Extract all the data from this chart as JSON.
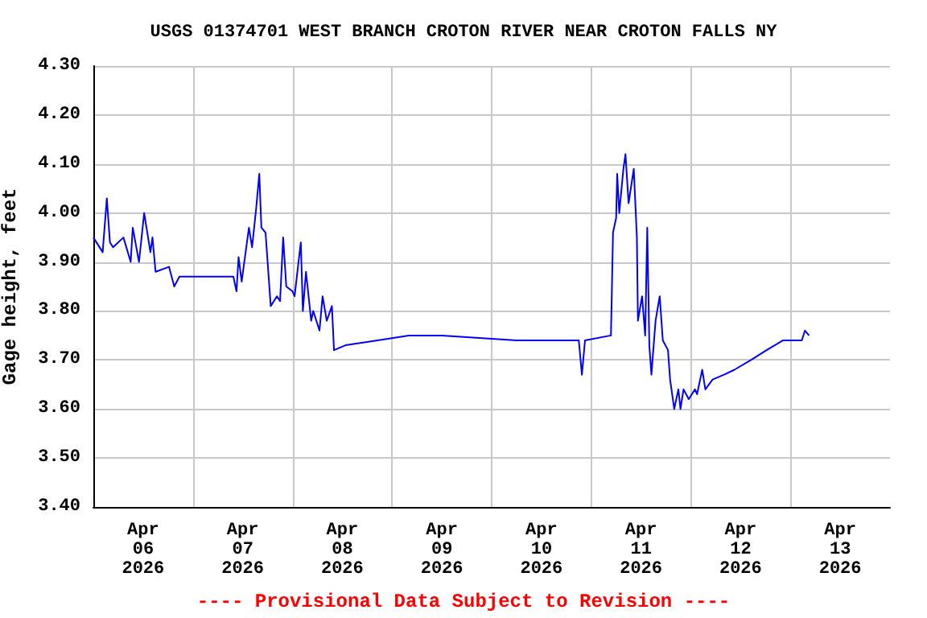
{
  "chart_data": {
    "type": "line",
    "title": "USGS 01374701 WEST BRANCH CROTON RIVER NEAR CROTON FALLS NY",
    "ylabel": "Gage height, feet",
    "annotations": [
      "---- Provisional Data Subject to Revision ----"
    ],
    "x": [
      "2026-04-06T00:00",
      "2026-04-06T02:15",
      "2026-04-06T03:15",
      "2026-04-06T04:00",
      "2026-04-06T04:45",
      "2026-04-06T07:15",
      "2026-04-06T09:00",
      "2026-04-06T09:30",
      "2026-04-06T11:00",
      "2026-04-06T12:15",
      "2026-04-06T13:45",
      "2026-04-06T14:15",
      "2026-04-06T15:00",
      "2026-04-06T18:15",
      "2026-04-06T19:30",
      "2026-04-06T20:45",
      "2026-04-07T09:45",
      "2026-04-07T10:30",
      "2026-04-07T11:00",
      "2026-04-07T11:45",
      "2026-04-07T13:30",
      "2026-04-07T14:15",
      "2026-04-07T15:15",
      "2026-04-07T16:00",
      "2026-04-07T16:30",
      "2026-04-07T17:30",
      "2026-04-07T18:00",
      "2026-04-07T18:45",
      "2026-04-07T20:15",
      "2026-04-07T21:00",
      "2026-04-07T21:45",
      "2026-04-07T22:30",
      "2026-04-08T00:00",
      "2026-04-08T00:30",
      "2026-04-08T02:00",
      "2026-04-08T02:30",
      "2026-04-08T03:15",
      "2026-04-08T04:30",
      "2026-04-08T05:00",
      "2026-04-08T06:30",
      "2026-04-08T07:15",
      "2026-04-08T08:15",
      "2026-04-08T09:30",
      "2026-04-08T10:00",
      "2026-04-08T12:45",
      "2026-04-08T20:30",
      "2026-04-09T04:00",
      "2026-04-09T12:00",
      "2026-04-10T06:00",
      "2026-04-10T21:00",
      "2026-04-10T21:45",
      "2026-04-10T22:30",
      "2026-04-11T04:45",
      "2026-04-11T05:15",
      "2026-04-11T06:00",
      "2026-04-11T06:15",
      "2026-04-11T06:45",
      "2026-04-11T07:45",
      "2026-04-11T08:15",
      "2026-04-11T09:00",
      "2026-04-11T10:15",
      "2026-04-11T11:00",
      "2026-04-11T11:15",
      "2026-04-11T12:15",
      "2026-04-11T13:00",
      "2026-04-11T13:30",
      "2026-04-11T14:00",
      "2026-04-11T14:30",
      "2026-04-11T15:30",
      "2026-04-11T16:30",
      "2026-04-11T17:15",
      "2026-04-11T18:30",
      "2026-04-11T19:00",
      "2026-04-11T20:00",
      "2026-04-11T21:00",
      "2026-04-11T21:30",
      "2026-04-11T22:15",
      "2026-04-11T23:30",
      "2026-04-12T01:00",
      "2026-04-12T01:30",
      "2026-04-12T02:45",
      "2026-04-12T03:30",
      "2026-04-12T05:15",
      "2026-04-12T08:00",
      "2026-04-12T10:30",
      "2026-04-12T14:30",
      "2026-04-12T18:15",
      "2026-04-12T22:15",
      "2026-04-13T02:45",
      "2026-04-13T03:30",
      "2026-04-13T04:30"
    ],
    "series": [
      {
        "color": "#0000ff",
        "values": [
          3.95,
          3.92,
          4.03,
          3.94,
          3.93,
          3.95,
          3.9,
          3.97,
          3.9,
          4.0,
          3.92,
          3.95,
          3.88,
          3.89,
          3.85,
          3.87,
          3.87,
          3.84,
          3.91,
          3.86,
          3.97,
          3.93,
          4.01,
          4.08,
          3.97,
          3.96,
          3.9,
          3.81,
          3.83,
          3.82,
          3.95,
          3.85,
          3.84,
          3.83,
          3.94,
          3.8,
          3.88,
          3.78,
          3.8,
          3.76,
          3.83,
          3.78,
          3.81,
          3.72,
          3.73,
          3.74,
          3.75,
          3.75,
          3.74,
          3.74,
          3.67,
          3.74,
          3.75,
          3.96,
          3.99,
          4.08,
          4.0,
          4.09,
          4.12,
          4.02,
          4.09,
          3.95,
          3.78,
          3.83,
          3.75,
          3.97,
          3.73,
          3.67,
          3.78,
          3.83,
          3.74,
          3.72,
          3.66,
          3.6,
          3.64,
          3.6,
          3.64,
          3.62,
          3.64,
          3.63,
          3.68,
          3.64,
          3.66,
          3.67,
          3.68,
          3.7,
          3.72,
          3.74,
          3.74,
          3.76,
          3.75
        ]
      }
    ],
    "xlim": [
      "2026-04-06T00:00",
      "2026-04-14T00:00"
    ],
    "xticks": [
      {
        "value": "2026-04-06T12:00",
        "label": "Apr\n06\n2026"
      },
      {
        "value": "2026-04-07T00:00",
        "label": null
      },
      {
        "value": "2026-04-07T12:00",
        "label": "Apr\n07\n2026"
      },
      {
        "value": "2026-04-08T00:00",
        "label": null
      },
      {
        "value": "2026-04-08T12:00",
        "label": "Apr\n08\n2026"
      },
      {
        "value": "2026-04-09T00:00",
        "label": null
      },
      {
        "value": "2026-04-09T12:00",
        "label": "Apr\n09\n2026"
      },
      {
        "value": "2026-04-10T00:00",
        "label": null
      },
      {
        "value": "2026-04-10T12:00",
        "label": "Apr\n10\n2026"
      },
      {
        "value": "2026-04-11T00:00",
        "label": null
      },
      {
        "value": "2026-04-11T12:00",
        "label": "Apr\n11\n2026"
      },
      {
        "value": "2026-04-12T00:00",
        "label": null
      },
      {
        "value": "2026-04-12T12:00",
        "label": "Apr\n12\n2026"
      },
      {
        "value": "2026-04-13T00:00",
        "label": null
      },
      {
        "value": "2026-04-13T12:00",
        "label": "Apr\n13\n2026"
      }
    ],
    "ylim": [
      3.4,
      4.3
    ],
    "yticks": [
      {
        "value": 3.4,
        "label": "3.40"
      },
      {
        "value": 3.5,
        "label": "3.50"
      },
      {
        "value": 3.6,
        "label": "3.60"
      },
      {
        "value": 3.7,
        "label": "3.70"
      },
      {
        "value": 3.8,
        "label": "3.80"
      },
      {
        "value": 3.9,
        "label": "3.90"
      },
      {
        "value": 4.0,
        "label": "4.00"
      },
      {
        "value": 4.1,
        "label": "4.10"
      },
      {
        "value": 4.2,
        "label": "4.20"
      },
      {
        "value": 4.3,
        "label": "4.30"
      }
    ],
    "grid": true,
    "marker": "none",
    "line_style": "solid"
  }
}
